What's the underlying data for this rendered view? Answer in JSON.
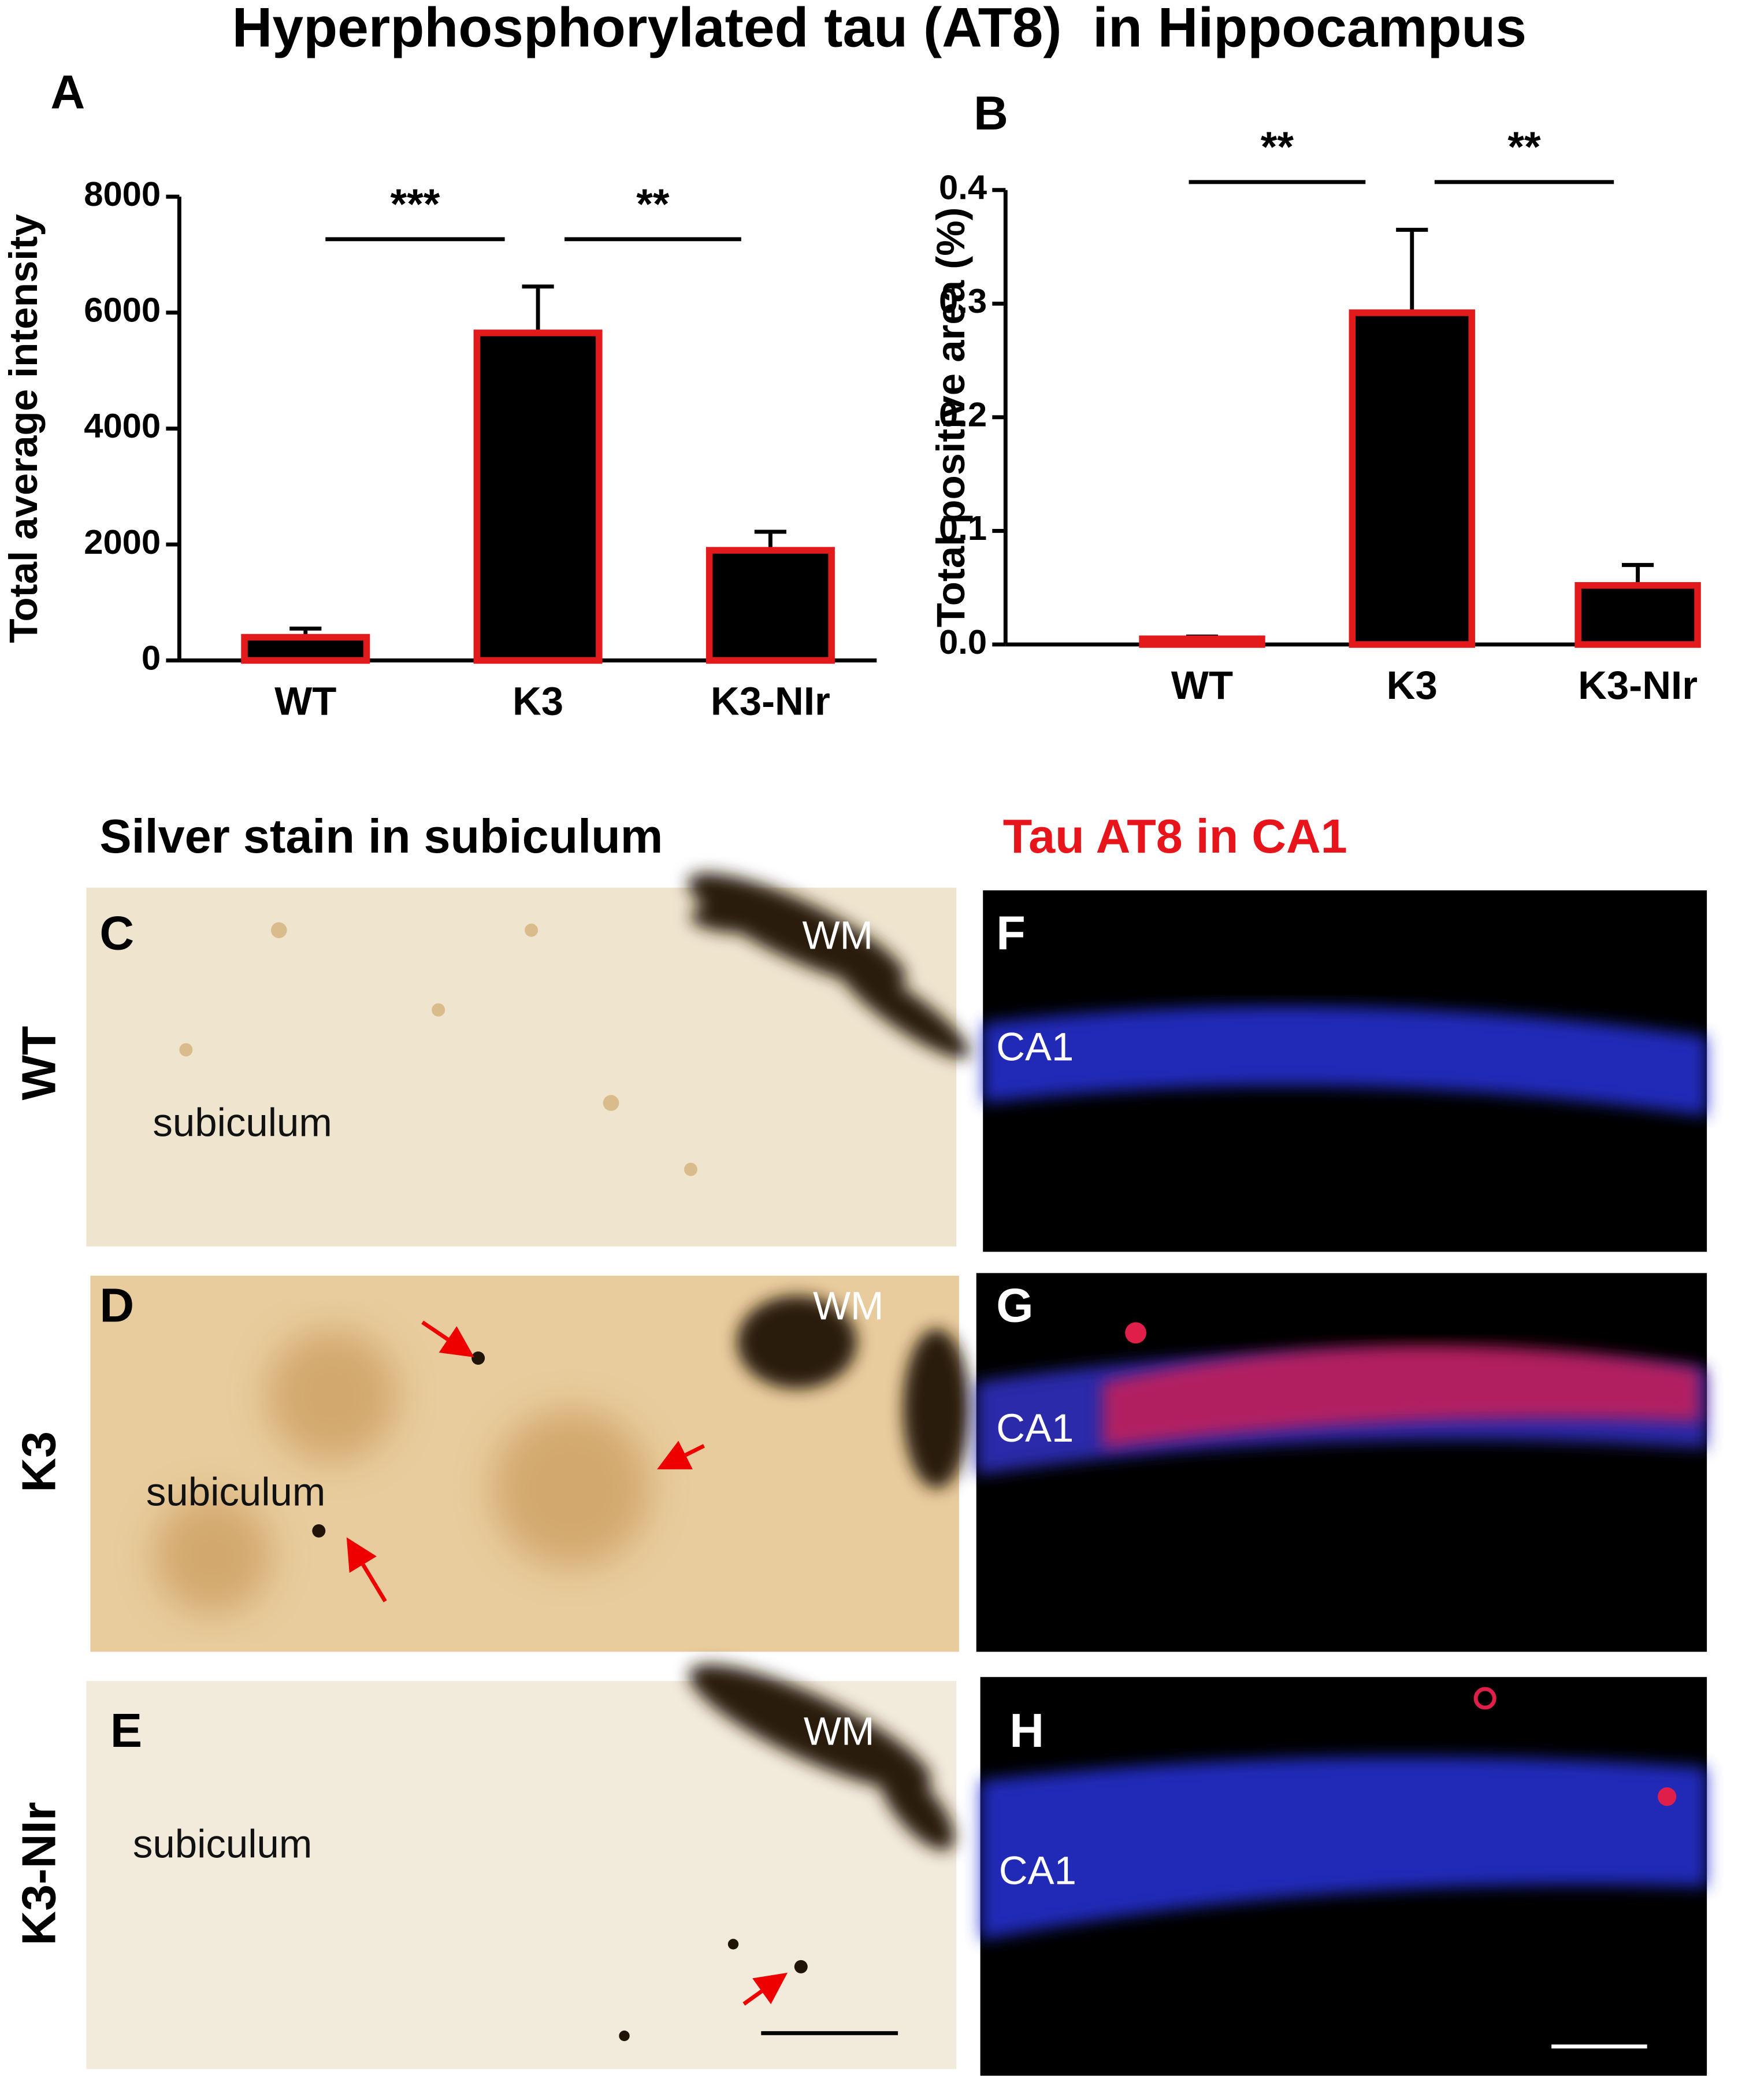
{
  "chart_data": [
    {
      "type": "bar",
      "panel": "A",
      "ylabel": "Total average intensity",
      "categories": [
        "WT",
        "K3",
        "K3-NIr"
      ],
      "values": [
        400,
        5650,
        1900
      ],
      "errors": [
        150,
        800,
        320
      ],
      "color": "#000000",
      "edgecolor": "#e31a1c",
      "ylim": [
        0,
        8000
      ],
      "yticks": [
        0,
        2000,
        4000,
        6000,
        8000
      ],
      "annotations": [
        "***",
        "**"
      ]
    },
    {
      "type": "bar",
      "panel": "B",
      "ylabel": "Total positive area (%)",
      "categories": [
        "WT",
        "K3",
        "K3-NIr"
      ],
      "values": [
        0.005,
        0.292,
        0.052
      ],
      "errors": [
        0.002,
        0.073,
        0.018
      ],
      "color": "#000000",
      "edgecolor": "#e31a1c",
      "ylim": [
        0,
        0.4
      ],
      "yticks": [
        {
          "value": 0,
          "label": "0.0"
        },
        0.1,
        0.2,
        0.3,
        0.4
      ],
      "annotations": [
        "**",
        "**"
      ]
    }
  ],
  "figure": {
    "title": "Hyperphosphorylated tau (AT8)  in Hippocampus",
    "sections": [
      "Silver stain in subiculum",
      "Tau AT8 in CA1"
    ],
    "rows": [
      "WT",
      "K3",
      "K3-NIr"
    ],
    "panels": [
      {
        "letter": "C",
        "labels": [
          "WM",
          "subiculum"
        ]
      },
      {
        "letter": "D",
        "labels": [
          "WM",
          "subiculum"
        ]
      },
      {
        "letter": "E",
        "labels": [
          "WM",
          "subiculum"
        ]
      },
      {
        "letter": "F",
        "labels": [
          "CA1"
        ]
      },
      {
        "letter": "G",
        "labels": [
          "CA1"
        ]
      },
      {
        "letter": "H",
        "labels": [
          "CA1"
        ]
      }
    ]
  }
}
